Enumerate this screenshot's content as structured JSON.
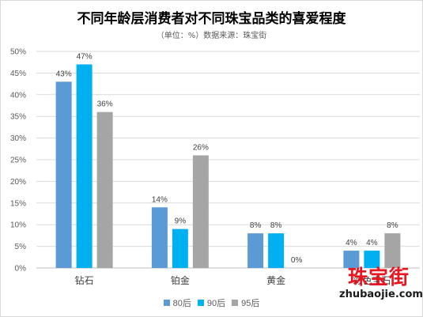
{
  "chart_data": {
    "type": "bar",
    "title": "不同年龄层消费者对不同珠宝品类的喜爱程度",
    "subtitle": "（单位：%）数据来源：珠宝街",
    "categories": [
      "钻石",
      "铂金",
      "黄金",
      "彩色宝石"
    ],
    "series": [
      {
        "name": "80后",
        "values": [
          43,
          14,
          8,
          4
        ],
        "color": "#5b9bd5"
      },
      {
        "name": "90后",
        "values": [
          47,
          9,
          8,
          4
        ],
        "color": "#00b0f0"
      },
      {
        "name": "95后",
        "values": [
          36,
          26,
          0,
          8
        ],
        "color": "#a5a5a5"
      }
    ],
    "ylim": [
      0,
      50
    ],
    "yticks": [
      "0%",
      "5%",
      "10%",
      "15%",
      "20%",
      "25%",
      "30%",
      "35%",
      "40%",
      "45%",
      "50%"
    ],
    "value_suffix": "%",
    "grid": true,
    "legend_position": "bottom"
  },
  "watermark": {
    "logo_text": "珠宝街",
    "domain": "zhubaojie.com"
  }
}
